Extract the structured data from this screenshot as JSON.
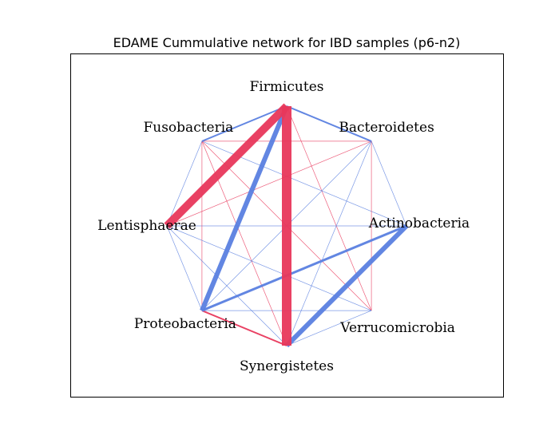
{
  "title": "EDAME Cummulative network for IBD samples (p6-n2)",
  "colors": {
    "positive": "#e8375b",
    "negative": "#5a7fe0"
  },
  "nodes": [
    {
      "id": "firmicutes",
      "label": "Firmicutes"
    },
    {
      "id": "bacteroidetes",
      "label": "Bacteroidetes"
    },
    {
      "id": "actinobacteria",
      "label": "Actinobacteria"
    },
    {
      "id": "verrucomicrobia",
      "label": "Verrucomicrobia"
    },
    {
      "id": "synergistetes",
      "label": "Synergistetes"
    },
    {
      "id": "proteobacteria",
      "label": "Proteobacteria"
    },
    {
      "id": "lentisphaerae",
      "label": "Lentisphaerae"
    },
    {
      "id": "fusobacteria",
      "label": "Fusobacteria"
    }
  ],
  "edges": [
    {
      "source": "firmicutes",
      "target": "synergistetes",
      "sign": "positive",
      "weight": 12
    },
    {
      "source": "firmicutes",
      "target": "lentisphaerae",
      "sign": "positive",
      "weight": 10
    },
    {
      "source": "firmicutes",
      "target": "proteobacteria",
      "sign": "negative",
      "weight": 6
    },
    {
      "source": "firmicutes",
      "target": "fusobacteria",
      "sign": "negative",
      "weight": 2
    },
    {
      "source": "firmicutes",
      "target": "bacteroidetes",
      "sign": "negative",
      "weight": 2
    },
    {
      "source": "firmicutes",
      "target": "verrucomicrobia",
      "sign": "positive",
      "weight": 1
    },
    {
      "source": "actinobacteria",
      "target": "synergistetes",
      "sign": "negative",
      "weight": 6
    },
    {
      "source": "actinobacteria",
      "target": "proteobacteria",
      "sign": "negative",
      "weight": 3
    },
    {
      "source": "actinobacteria",
      "target": "lentisphaerae",
      "sign": "negative",
      "weight": 1
    },
    {
      "source": "actinobacteria",
      "target": "bacteroidetes",
      "sign": "negative",
      "weight": 1
    },
    {
      "source": "actinobacteria",
      "target": "fusobacteria",
      "sign": "negative",
      "weight": 1
    },
    {
      "source": "proteobacteria",
      "target": "synergistetes",
      "sign": "positive",
      "weight": 2
    },
    {
      "source": "proteobacteria",
      "target": "verrucomicrobia",
      "sign": "negative",
      "weight": 1
    },
    {
      "source": "proteobacteria",
      "target": "lentisphaerae",
      "sign": "negative",
      "weight": 1
    },
    {
      "source": "proteobacteria",
      "target": "bacteroidetes",
      "sign": "negative",
      "weight": 1
    },
    {
      "source": "fusobacteria",
      "target": "bacteroidetes",
      "sign": "positive",
      "weight": 1
    },
    {
      "source": "fusobacteria",
      "target": "synergistetes",
      "sign": "positive",
      "weight": 1
    },
    {
      "source": "fusobacteria",
      "target": "verrucomicrobia",
      "sign": "positive",
      "weight": 1
    },
    {
      "source": "fusobacteria",
      "target": "proteobacteria",
      "sign": "positive",
      "weight": 1
    },
    {
      "source": "fusobacteria",
      "target": "lentisphaerae",
      "sign": "negative",
      "weight": 1
    },
    {
      "source": "bacteroidetes",
      "target": "lentisphaerae",
      "sign": "positive",
      "weight": 1
    },
    {
      "source": "bacteroidetes",
      "target": "verrucomicrobia",
      "sign": "positive",
      "weight": 1
    },
    {
      "source": "bacteroidetes",
      "target": "synergistetes",
      "sign": "negative",
      "weight": 1
    },
    {
      "source": "lentisphaerae",
      "target": "verrucomicrobia",
      "sign": "negative",
      "weight": 1
    },
    {
      "source": "lentisphaerae",
      "target": "synergistetes",
      "sign": "negative",
      "weight": 1
    },
    {
      "source": "verrucomicrobia",
      "target": "synergistetes",
      "sign": "negative",
      "weight": 1
    }
  ]
}
